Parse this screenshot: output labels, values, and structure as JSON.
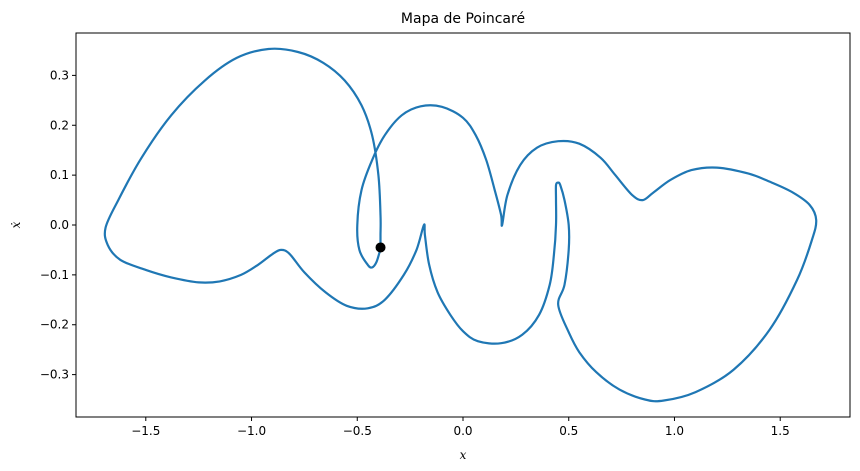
{
  "chart_data": {
    "type": "line",
    "title": "Mapa de Poincaré",
    "xlabel": "x",
    "ylabel": "ẋ",
    "xlim": [
      -1.83,
      1.83
    ],
    "ylim": [
      -0.385,
      0.385
    ],
    "xticks": [
      -1.5,
      -1.0,
      -0.5,
      0.0,
      0.5,
      1.0,
      1.5
    ],
    "xtick_labels": [
      "−1.5",
      "−1.0",
      "−0.5",
      "0.0",
      "0.5",
      "1.0",
      "1.5"
    ],
    "yticks": [
      0.3,
      0.2,
      0.1,
      0.0,
      -0.1,
      -0.2,
      -0.3
    ],
    "ytick_labels": [
      "0.3",
      "0.2",
      "0.1",
      "0.0",
      "−0.1",
      "−0.2",
      "−0.3"
    ],
    "grid": false,
    "series": [
      {
        "color": "#1f77b4",
        "points": [
          [
            -0.39,
            -0.045
          ],
          [
            -0.39,
            -0.02
          ],
          [
            -0.39,
            0.02
          ],
          [
            -0.4,
            0.1
          ],
          [
            -0.43,
            0.18
          ],
          [
            -0.48,
            0.24
          ],
          [
            -0.56,
            0.29
          ],
          [
            -0.66,
            0.325
          ],
          [
            -0.78,
            0.347
          ],
          [
            -0.92,
            0.353
          ],
          [
            -1.07,
            0.335
          ],
          [
            -1.22,
            0.29
          ],
          [
            -1.38,
            0.22
          ],
          [
            -1.52,
            0.135
          ],
          [
            -1.63,
            0.05
          ],
          [
            -1.69,
            -0.005
          ],
          [
            -1.68,
            -0.04
          ],
          [
            -1.62,
            -0.07
          ],
          [
            -1.5,
            -0.09
          ],
          [
            -1.38,
            -0.105
          ],
          [
            -1.25,
            -0.115
          ],
          [
            -1.15,
            -0.113
          ],
          [
            -1.05,
            -0.1
          ],
          [
            -0.97,
            -0.08
          ],
          [
            -0.9,
            -0.058
          ],
          [
            -0.86,
            -0.05
          ],
          [
            -0.82,
            -0.058
          ],
          [
            -0.75,
            -0.095
          ],
          [
            -0.65,
            -0.135
          ],
          [
            -0.55,
            -0.162
          ],
          [
            -0.45,
            -0.167
          ],
          [
            -0.37,
            -0.15
          ],
          [
            -0.28,
            -0.1
          ],
          [
            -0.22,
            -0.05
          ],
          [
            -0.185,
            0.0
          ],
          [
            -0.18,
            -0.02
          ],
          [
            -0.16,
            -0.08
          ],
          [
            -0.12,
            -0.135
          ],
          [
            -0.06,
            -0.18
          ],
          [
            0.0,
            -0.213
          ],
          [
            0.07,
            -0.233
          ],
          [
            0.18,
            -0.237
          ],
          [
            0.28,
            -0.22
          ],
          [
            0.36,
            -0.18
          ],
          [
            0.41,
            -0.12
          ],
          [
            0.43,
            -0.06
          ],
          [
            0.44,
            0.0
          ],
          [
            0.44,
            0.05
          ],
          [
            0.44,
            0.08
          ],
          [
            0.45,
            0.085
          ],
          [
            0.46,
            0.08
          ],
          [
            0.48,
            0.05
          ],
          [
            0.5,
            0.0
          ],
          [
            0.5,
            -0.05
          ],
          [
            0.48,
            -0.12
          ],
          [
            0.45,
            -0.16
          ],
          [
            0.5,
            -0.215
          ],
          [
            0.55,
            -0.255
          ],
          [
            0.63,
            -0.295
          ],
          [
            0.74,
            -0.33
          ],
          [
            0.86,
            -0.35
          ],
          [
            0.95,
            -0.352
          ],
          [
            1.1,
            -0.335
          ],
          [
            1.28,
            -0.29
          ],
          [
            1.45,
            -0.21
          ],
          [
            1.58,
            -0.11
          ],
          [
            1.65,
            -0.03
          ],
          [
            1.67,
            0.01
          ],
          [
            1.64,
            0.04
          ],
          [
            1.56,
            0.065
          ],
          [
            1.46,
            0.085
          ],
          [
            1.35,
            0.103
          ],
          [
            1.2,
            0.115
          ],
          [
            1.08,
            0.11
          ],
          [
            0.98,
            0.09
          ],
          [
            0.9,
            0.065
          ],
          [
            0.85,
            0.05
          ],
          [
            0.8,
            0.06
          ],
          [
            0.72,
            0.1
          ],
          [
            0.65,
            0.135
          ],
          [
            0.55,
            0.163
          ],
          [
            0.45,
            0.168
          ],
          [
            0.35,
            0.155
          ],
          [
            0.27,
            0.12
          ],
          [
            0.21,
            0.06
          ],
          [
            0.185,
            0.0
          ],
          [
            0.18,
            0.02
          ],
          [
            0.15,
            0.07
          ],
          [
            0.11,
            0.13
          ],
          [
            0.06,
            0.18
          ],
          [
            0.0,
            0.215
          ],
          [
            -0.1,
            0.237
          ],
          [
            -0.2,
            0.238
          ],
          [
            -0.29,
            0.22
          ],
          [
            -0.37,
            0.18
          ],
          [
            -0.43,
            0.13
          ],
          [
            -0.48,
            0.07
          ],
          [
            -0.5,
            0.0
          ],
          [
            -0.49,
            -0.05
          ],
          [
            -0.45,
            -0.08
          ],
          [
            -0.43,
            -0.085
          ],
          [
            -0.41,
            -0.075
          ],
          [
            -0.395,
            -0.055
          ],
          [
            -0.39,
            -0.045
          ]
        ]
      }
    ],
    "marker": {
      "x": -0.39,
      "y": -0.045,
      "color": "#000000"
    }
  }
}
